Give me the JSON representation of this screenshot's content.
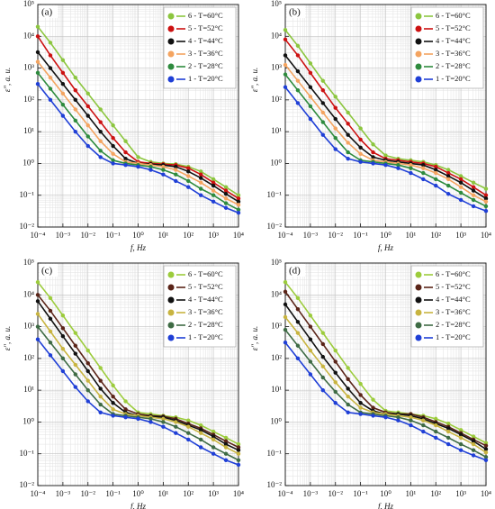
{
  "chart_data": [
    {
      "type": "line",
      "panel_label": "(a)",
      "xlabel": "f, Hz",
      "ylabel": "ε″, a. u.",
      "xscale": "log",
      "yscale": "log",
      "grid": true,
      "minor_grid": true,
      "legend": "upper right",
      "xlim": [
        0.0001,
        10000
      ],
      "ylim": [
        0.01,
        100000
      ],
      "xticks": [
        {
          "value": 0.0001,
          "label": "10⁻⁴"
        },
        {
          "value": 0.001,
          "label": "10⁻³"
        },
        {
          "value": 0.01,
          "label": "10⁻²"
        },
        {
          "value": 0.1,
          "label": "10⁻¹"
        },
        {
          "value": 1,
          "label": "10⁰"
        },
        {
          "value": 10,
          "label": "10¹"
        },
        {
          "value": 100,
          "label": "10²"
        },
        {
          "value": 1000,
          "label": "10³"
        },
        {
          "value": 10000,
          "label": "10⁴"
        }
      ],
      "yticks": [
        {
          "value": 0.01,
          "label": "10⁻²"
        },
        {
          "value": 0.1,
          "label": "10⁻¹"
        },
        {
          "value": 1,
          "label": "10⁰"
        },
        {
          "value": 10,
          "label": "10¹"
        },
        {
          "value": 100,
          "label": "10²"
        },
        {
          "value": 1000,
          "label": "10³"
        },
        {
          "value": 10000,
          "label": "10⁴"
        },
        {
          "value": 100000,
          "label": "10⁵"
        }
      ],
      "x": [
        0.0001,
        0.000316,
        0.001,
        0.00316,
        0.01,
        0.0316,
        0.1,
        0.316,
        1,
        3.16,
        10,
        31.6,
        100,
        316,
        1000,
        3162,
        10000
      ],
      "series": [
        {
          "name": "6 - T=60°C",
          "color": "#8cc63f",
          "values": [
            20000,
            6310,
            1778,
            501,
            158,
            50.1,
            15.8,
            5.01,
            1.58,
            1.12,
            1,
            0.95,
            0.79,
            0.56,
            0.32,
            0.18,
            0.1
          ]
        },
        {
          "name": "5 - T=52°C",
          "color": "#cc1111",
          "values": [
            10000,
            2512,
            708,
            200,
            63.1,
            20,
            6.31,
            2.24,
            1.12,
            1,
            0.95,
            0.89,
            0.71,
            0.45,
            0.25,
            0.14,
            0.079
          ]
        },
        {
          "name": "4 - T=44°C",
          "color": "#111111",
          "values": [
            3162,
            1000,
            316,
            100,
            31.6,
            10,
            3.55,
            1.41,
            1,
            0.95,
            0.89,
            0.79,
            0.56,
            0.35,
            0.2,
            0.11,
            0.063
          ]
        },
        {
          "name": "3 - T=36°C",
          "color": "#f4a460",
          "values": [
            1585,
            501,
            158,
            50.1,
            15.8,
            5.01,
            2,
            1.12,
            1,
            0.89,
            0.79,
            0.63,
            0.4,
            0.25,
            0.14,
            0.079,
            0.05
          ]
        },
        {
          "name": "2 - T=28°C",
          "color": "#2e8b3e",
          "values": [
            708,
            224,
            70.8,
            22.4,
            7.08,
            2.51,
            1.26,
            1,
            0.89,
            0.79,
            0.63,
            0.45,
            0.28,
            0.16,
            0.1,
            0.056,
            0.035
          ]
        },
        {
          "name": "1 - T=20°C",
          "color": "#1f3fd6",
          "values": [
            316,
            100,
            31.6,
            10,
            3.55,
            1.58,
            1,
            0.89,
            0.79,
            0.63,
            0.45,
            0.28,
            0.18,
            0.1,
            0.063,
            0.04,
            0.028
          ]
        }
      ]
    },
    {
      "type": "line",
      "panel_label": "(b)",
      "xlabel": "f, Hz",
      "ylabel": "ε″, a. u.",
      "xscale": "log",
      "yscale": "log",
      "grid": true,
      "minor_grid": true,
      "legend": "upper right",
      "xlim": [
        0.0001,
        10000
      ],
      "ylim": [
        0.01,
        100000
      ],
      "xticks": [
        {
          "value": 0.0001,
          "label": "10⁻⁴"
        },
        {
          "value": 0.001,
          "label": "10⁻³"
        },
        {
          "value": 0.01,
          "label": "10⁻²"
        },
        {
          "value": 0.1,
          "label": "10⁻¹"
        },
        {
          "value": 1,
          "label": "10⁰"
        },
        {
          "value": 10,
          "label": "10¹"
        },
        {
          "value": 100,
          "label": "10²"
        },
        {
          "value": 1000,
          "label": "10³"
        },
        {
          "value": 10000,
          "label": "10⁴"
        }
      ],
      "yticks": [
        {
          "value": 0.01,
          "label": "10⁻²"
        },
        {
          "value": 0.1,
          "label": "10⁻¹"
        },
        {
          "value": 1,
          "label": "10⁰"
        },
        {
          "value": 10,
          "label": "10¹"
        },
        {
          "value": 100,
          "label": "10²"
        },
        {
          "value": 1000,
          "label": "10³"
        },
        {
          "value": 10000,
          "label": "10⁴"
        },
        {
          "value": 100000,
          "label": "10⁵"
        }
      ],
      "x": [
        0.0001,
        0.000316,
        0.001,
        0.00316,
        0.01,
        0.0316,
        0.1,
        0.316,
        1,
        3.16,
        10,
        31.6,
        100,
        316,
        1000,
        3162,
        10000
      ],
      "series": [
        {
          "name": "6 - T=60°C",
          "color": "#8cc63f",
          "values": [
            15849,
            5012,
            1413,
            398,
            126,
            39.8,
            12.6,
            3.98,
            1.78,
            1.41,
            1.26,
            1.12,
            0.89,
            0.63,
            0.4,
            0.25,
            0.16
          ]
        },
        {
          "name": "5 - T=52°C",
          "color": "#cc1111",
          "values": [
            7943,
            2512,
            708,
            200,
            56.2,
            17.8,
            5.62,
            2.24,
            1.41,
            1.26,
            1.12,
            1,
            0.79,
            0.5,
            0.32,
            0.18,
            0.1
          ]
        },
        {
          "name": "4 - T=44°C",
          "color": "#111111",
          "values": [
            2512,
            794,
            251,
            79.4,
            25.1,
            7.94,
            3.16,
            1.58,
            1.26,
            1.12,
            1,
            0.89,
            0.63,
            0.4,
            0.25,
            0.14,
            0.079
          ]
        },
        {
          "name": "3 - T=36°C",
          "color": "#f4a460",
          "values": [
            1259,
            398,
            126,
            39.8,
            12.6,
            4.47,
            2,
            1.26,
            1.12,
            1,
            0.89,
            0.71,
            0.5,
            0.32,
            0.18,
            0.1,
            0.063
          ]
        },
        {
          "name": "2 - T=28°C",
          "color": "#2e8b3e",
          "values": [
            631,
            200,
            63.1,
            20,
            6.31,
            2.24,
            1.26,
            1.12,
            1,
            0.89,
            0.71,
            0.5,
            0.32,
            0.2,
            0.12,
            0.071,
            0.045
          ]
        },
        {
          "name": "1 - T=20°C",
          "color": "#1f3fd6",
          "values": [
            251,
            79.4,
            25.1,
            7.94,
            2.82,
            1.41,
            1.12,
            1,
            0.89,
            0.71,
            0.5,
            0.32,
            0.2,
            0.11,
            0.071,
            0.045,
            0.032
          ]
        }
      ]
    },
    {
      "type": "line",
      "panel_label": "(c)",
      "xlabel": "f, Hz",
      "ylabel": "ε″, a. u.",
      "xscale": "log",
      "yscale": "log",
      "grid": true,
      "minor_grid": true,
      "legend": "upper right",
      "xlim": [
        0.0001,
        10000
      ],
      "ylim": [
        0.01,
        100000
      ],
      "xticks": [
        {
          "value": 0.0001,
          "label": "10⁻⁴"
        },
        {
          "value": 0.001,
          "label": "10⁻³"
        },
        {
          "value": 0.01,
          "label": "10⁻²"
        },
        {
          "value": 0.1,
          "label": "10⁻¹"
        },
        {
          "value": 1,
          "label": "10⁰"
        },
        {
          "value": 10,
          "label": "10¹"
        },
        {
          "value": 100,
          "label": "10²"
        },
        {
          "value": 1000,
          "label": "10³"
        },
        {
          "value": 10000,
          "label": "10⁴"
        }
      ],
      "yticks": [
        {
          "value": 0.01,
          "label": "10⁻²"
        },
        {
          "value": 0.1,
          "label": "10⁻¹"
        },
        {
          "value": 1,
          "label": "10⁰"
        },
        {
          "value": 10,
          "label": "10¹"
        },
        {
          "value": 100,
          "label": "10²"
        },
        {
          "value": 1000,
          "label": "10³"
        },
        {
          "value": 10000,
          "label": "10⁴"
        },
        {
          "value": 100000,
          "label": "10⁵"
        }
      ],
      "x": [
        0.0001,
        0.000316,
        0.001,
        0.00316,
        0.01,
        0.0316,
        0.1,
        0.316,
        1,
        3.16,
        10,
        31.6,
        100,
        316,
        1000,
        3162,
        10000
      ],
      "series": [
        {
          "name": "6 - T=60°C",
          "color": "#9ccc3c",
          "values": [
            25119,
            7943,
            2239,
            631,
            178,
            50.1,
            14.1,
            4.47,
            2,
            1.78,
            1.58,
            1.41,
            1.12,
            0.79,
            0.5,
            0.32,
            0.2
          ]
        },
        {
          "name": "5 - T=52°C",
          "color": "#5a2418",
          "values": [
            10000,
            3162,
            891,
            251,
            70.8,
            20,
            6.31,
            2.51,
            1.78,
            1.58,
            1.5,
            1.26,
            0.89,
            0.63,
            0.4,
            0.25,
            0.16
          ]
        },
        {
          "name": "4 - T=44°C",
          "color": "#111111",
          "values": [
            6310,
            1778,
            501,
            141,
            39.8,
            11.2,
            3.98,
            2,
            1.58,
            1.5,
            1.41,
            1.12,
            0.79,
            0.56,
            0.35,
            0.2,
            0.13
          ]
        },
        {
          "name": "3 - T=36°C",
          "color": "#c8b440",
          "values": [
            2512,
            708,
            200,
            63.1,
            20,
            6.31,
            2.51,
            1.78,
            1.58,
            1.41,
            1.26,
            1,
            0.71,
            0.45,
            0.28,
            0.16,
            0.1
          ]
        },
        {
          "name": "2 - T=28°C",
          "color": "#3e6b44",
          "values": [
            1000,
            316,
            100,
            31.6,
            10,
            3.55,
            1.78,
            1.58,
            1.41,
            1.26,
            1,
            0.71,
            0.45,
            0.28,
            0.16,
            0.1,
            0.063
          ]
        },
        {
          "name": "1 - T=20°C",
          "color": "#1f3fd6",
          "values": [
            398,
            126,
            39.8,
            12.6,
            4.47,
            2,
            1.58,
            1.41,
            1.26,
            1,
            0.71,
            0.45,
            0.28,
            0.16,
            0.1,
            0.063,
            0.045
          ]
        }
      ]
    },
    {
      "type": "line",
      "panel_label": "(d)",
      "xlabel": "f, Hz",
      "ylabel": "ε″, a. u.",
      "xscale": "log",
      "yscale": "log",
      "grid": true,
      "minor_grid": true,
      "legend": "upper right",
      "xlim": [
        0.0001,
        10000
      ],
      "ylim": [
        0.01,
        100000
      ],
      "xticks": [
        {
          "value": 0.0001,
          "label": "10⁻⁴"
        },
        {
          "value": 0.001,
          "label": "10⁻³"
        },
        {
          "value": 0.01,
          "label": "10⁻²"
        },
        {
          "value": 0.1,
          "label": "10⁻¹"
        },
        {
          "value": 1,
          "label": "10⁰"
        },
        {
          "value": 10,
          "label": "10¹"
        },
        {
          "value": 100,
          "label": "10²"
        },
        {
          "value": 1000,
          "label": "10³"
        },
        {
          "value": 10000,
          "label": "10⁴"
        }
      ],
      "yticks": [
        {
          "value": 0.01,
          "label": "10⁻²"
        },
        {
          "value": 0.1,
          "label": "10⁻¹"
        },
        {
          "value": 1,
          "label": "10⁰"
        },
        {
          "value": 10,
          "label": "10¹"
        },
        {
          "value": 100,
          "label": "10²"
        },
        {
          "value": 1000,
          "label": "10³"
        },
        {
          "value": 10000,
          "label": "10⁴"
        },
        {
          "value": 100000,
          "label": "10⁵"
        }
      ],
      "x": [
        0.0001,
        0.000316,
        0.001,
        0.00316,
        0.01,
        0.0316,
        0.1,
        0.316,
        1,
        3.16,
        10,
        31.6,
        100,
        316,
        1000,
        3162,
        10000
      ],
      "series": [
        {
          "name": "6 - T=60°C",
          "color": "#9ccc3c",
          "values": [
            25119,
            7943,
            2239,
            631,
            178,
            50.1,
            15.8,
            5.01,
            2.24,
            2,
            1.78,
            1.58,
            1.26,
            0.89,
            0.56,
            0.35,
            0.22
          ]
        },
        {
          "name": "5 - T=52°C",
          "color": "#5a2418",
          "values": [
            12589,
            3548,
            1000,
            282,
            79.4,
            22.4,
            7.08,
            2.82,
            2,
            1.78,
            1.78,
            1.41,
            1,
            0.71,
            0.45,
            0.28,
            0.18
          ]
        },
        {
          "name": "4 - T=44°C",
          "color": "#111111",
          "values": [
            5012,
            1413,
            398,
            112,
            35.5,
            11.2,
            3.98,
            2.24,
            1.78,
            1.78,
            1.58,
            1.26,
            0.89,
            0.63,
            0.4,
            0.25,
            0.14
          ]
        },
        {
          "name": "3 - T=36°C",
          "color": "#c8b440",
          "values": [
            1995,
            631,
            178,
            56.2,
            17.8,
            6.31,
            2.82,
            2,
            1.78,
            1.58,
            1.41,
            1.12,
            0.79,
            0.5,
            0.32,
            0.2,
            0.11
          ]
        },
        {
          "name": "2 - T=28°C",
          "color": "#3e6b44",
          "values": [
            794,
            251,
            79.4,
            25.1,
            8.91,
            3.55,
            2,
            1.78,
            1.58,
            1.41,
            1.12,
            0.79,
            0.5,
            0.32,
            0.2,
            0.13,
            0.079
          ]
        },
        {
          "name": "1 - T=20°C",
          "color": "#1f3fd6",
          "values": [
            316,
            100,
            31.6,
            10,
            3.98,
            2,
            1.78,
            1.58,
            1.41,
            1.12,
            0.79,
            0.5,
            0.32,
            0.2,
            0.13,
            0.089,
            0.063
          ]
        }
      ]
    }
  ]
}
